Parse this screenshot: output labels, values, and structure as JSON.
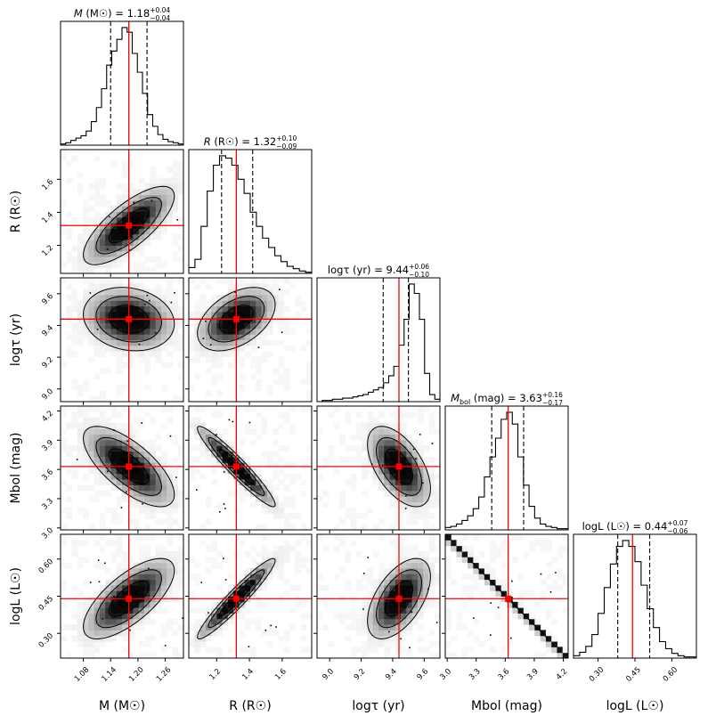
{
  "chart_data": {
    "type": "corner",
    "parameters": [
      {
        "key": "M",
        "axis_label": "M (M☉)",
        "title": "M (M☉) = 1.18 +0.04 −0.04",
        "title_symbol": "M",
        "title_unit": "(M☉) = 1.18",
        "title_plus": "+0.04",
        "title_minus": "−0.04",
        "median": 1.18,
        "lower": 1.14,
        "upper": 1.22,
        "truth": 1.18,
        "range": [
          1.03,
          1.3
        ],
        "ticks": [
          1.08,
          1.14,
          1.2,
          1.26
        ],
        "tick_labels": [
          "1.08",
          "1.14",
          "1.20",
          "1.26"
        ]
      },
      {
        "key": "R",
        "axis_label": "R (R☉)",
        "title": "R (R☉) = 1.32 +0.10 −0.09",
        "title_symbol": "R",
        "title_unit": "(R☉) = 1.32",
        "title_plus": "+0.10",
        "title_minus": "−0.09",
        "median": 1.32,
        "lower": 1.23,
        "upper": 1.42,
        "truth": 1.32,
        "range": [
          1.03,
          1.78
        ],
        "ticks": [
          1.2,
          1.4,
          1.6
        ],
        "tick_labels": [
          "1.2",
          "1.4",
          "1.6"
        ]
      },
      {
        "key": "logtau",
        "axis_label": "logτ (yr)",
        "title": "logτ (yr) = 9.44 +0.06 −0.10",
        "title_symbol": "",
        "title_unit": "logτ (yr) = 9.44",
        "title_plus": "+0.06",
        "title_minus": "−0.10",
        "median": 9.44,
        "lower": 9.34,
        "upper": 9.5,
        "truth": 9.44,
        "range": [
          8.92,
          9.7
        ],
        "ticks": [
          9.0,
          9.2,
          9.4,
          9.6
        ],
        "tick_labels": [
          "9.0",
          "9.2",
          "9.4",
          "9.6"
        ]
      },
      {
        "key": "Mbol",
        "axis_label": "Mbol (mag)",
        "title": "Mbol (mag) = 3.63 +0.16 −0.17",
        "title_symbol": "M",
        "title_unit": "(mag) = 3.63",
        "title_plus": "+0.16",
        "title_minus": "−0.17",
        "median": 3.63,
        "lower": 3.46,
        "upper": 3.79,
        "truth": 3.63,
        "range": [
          2.98,
          4.25
        ],
        "ticks": [
          3.0,
          3.3,
          3.6,
          3.9,
          4.2
        ],
        "tick_labels": [
          "3.0",
          "3.3",
          "3.6",
          "3.9",
          "4.2"
        ]
      },
      {
        "key": "logL",
        "axis_label": "logL (L☉)",
        "title": "logL (L☉) = 0.44 +0.07 −0.06",
        "title_symbol": "",
        "title_unit": "logL (L☉) = 0.44",
        "title_plus": "+0.07",
        "title_minus": "−0.06",
        "median": 0.44,
        "lower": 0.38,
        "upper": 0.51,
        "truth": 0.44,
        "range": [
          0.2,
          0.7
        ],
        "ticks": [
          0.3,
          0.45,
          0.6
        ],
        "tick_labels": [
          "0.30",
          "0.45",
          "0.60"
        ]
      }
    ],
    "histograms": [
      [
        0.01,
        0.02,
        0.04,
        0.06,
        0.08,
        0.12,
        0.2,
        0.32,
        0.48,
        0.68,
        0.8,
        0.9,
        1.0,
        0.96,
        0.78,
        0.62,
        0.44,
        0.26,
        0.16,
        0.09,
        0.05,
        0.03,
        0.02,
        0.01
      ],
      [
        0.05,
        0.12,
        0.4,
        0.7,
        0.92,
        1.0,
        0.98,
        0.92,
        0.8,
        0.68,
        0.52,
        0.4,
        0.3,
        0.22,
        0.15,
        0.1,
        0.06,
        0.04,
        0.02,
        0.01
      ],
      [
        0.0,
        0.01,
        0.01,
        0.02,
        0.02,
        0.03,
        0.03,
        0.04,
        0.05,
        0.06,
        0.08,
        0.1,
        0.12,
        0.16,
        0.22,
        0.3,
        0.48,
        0.7,
        1.0,
        0.92,
        0.7,
        0.24,
        0.06,
        0.02
      ],
      [
        0.02,
        0.03,
        0.05,
        0.08,
        0.12,
        0.18,
        0.28,
        0.45,
        0.62,
        0.78,
        0.94,
        1.0,
        0.9,
        0.62,
        0.38,
        0.2,
        0.1,
        0.05,
        0.03,
        0.02,
        0.01,
        0.01
      ],
      [
        0.02,
        0.05,
        0.1,
        0.2,
        0.38,
        0.6,
        0.8,
        0.95,
        1.0,
        0.95,
        0.82,
        0.62,
        0.42,
        0.26,
        0.14,
        0.08,
        0.04,
        0.02,
        0.01,
        0.01
      ]
    ],
    "correlations": [
      [
        1.0,
        0.75,
        -0.15,
        -0.7,
        0.7
      ],
      [
        0.75,
        1.0,
        0.45,
        -0.95,
        0.95
      ],
      [
        -0.15,
        0.45,
        1.0,
        -0.55,
        0.55
      ],
      [
        -0.7,
        -0.95,
        -0.55,
        1.0,
        -1.0
      ],
      [
        0.7,
        0.95,
        0.55,
        -1.0,
        1.0
      ]
    ],
    "reference_lines_color": "#ff0000",
    "quantile_lines_style": "dashed",
    "contour_fill_color": "#000000"
  }
}
